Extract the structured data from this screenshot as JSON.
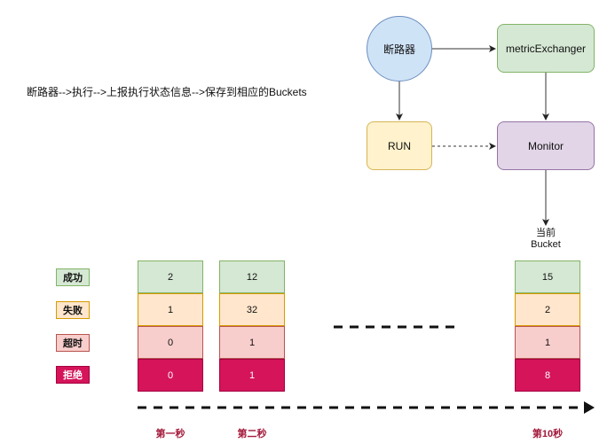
{
  "flow_text": "断路器-->执行-->上报执行状态信息-->保存到相应的Buckets",
  "nodes": {
    "breaker": "断路器",
    "metric": "metricExchanger",
    "run": "RUN",
    "monitor": "Monitor",
    "current_bucket_line1": "当前",
    "current_bucket_line2": "Bucket"
  },
  "legend": [
    {
      "label": "成功",
      "color": "#d5e8d4"
    },
    {
      "label": "失败",
      "color": "#ffe6cc"
    },
    {
      "label": "超时",
      "color": "#f8cecc"
    },
    {
      "label": "拒绝",
      "color": "#d5145a"
    }
  ],
  "buckets": [
    {
      "label": "第一秒",
      "values": [
        "2",
        "1",
        "0",
        "0"
      ]
    },
    {
      "label": "第二秒",
      "values": [
        "12",
        "32",
        "1",
        "1"
      ]
    },
    {
      "label": "第10秒",
      "values": [
        "15",
        "2",
        "1",
        "8"
      ]
    }
  ]
}
